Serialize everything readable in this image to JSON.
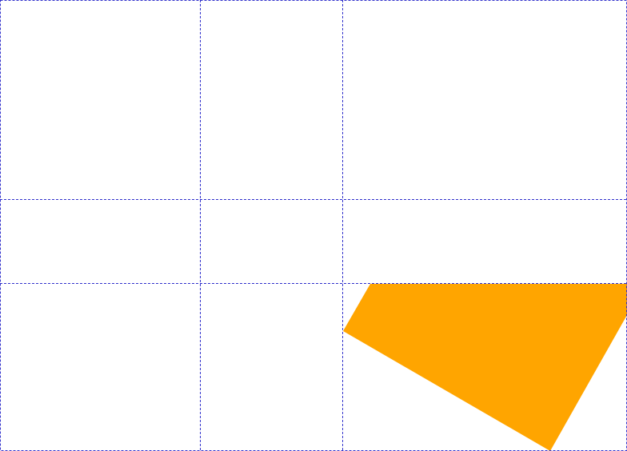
{
  "canvas": {
    "background": "#ffffff"
  },
  "guides": {
    "color": "#3333cc",
    "style": "dashed",
    "vertical_count": 2,
    "horizontal_count": 2
  },
  "shape": {
    "name": "orange-quadrilateral",
    "fill": "#ffa500"
  }
}
